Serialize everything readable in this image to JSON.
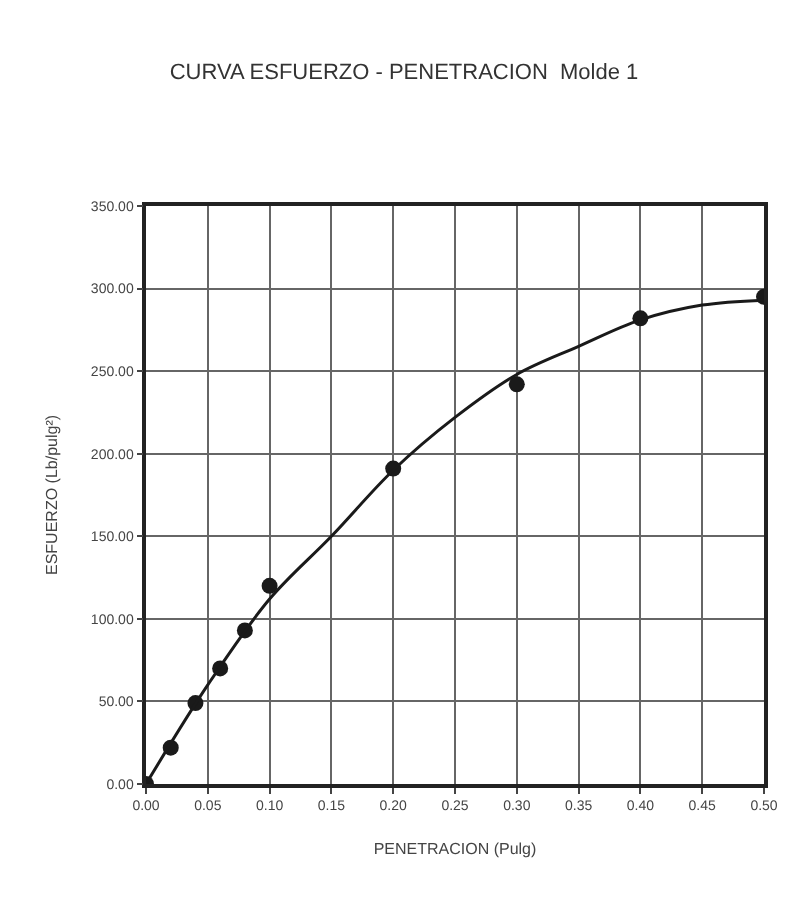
{
  "chart_data": {
    "type": "scatter",
    "title": "CURVA ESFUERZO - PENETRACION  Molde 1",
    "xlabel": "PENETRACION (Pulg)",
    "ylabel": "ESFUERZO (Lb/pulg²)",
    "xlim": [
      0,
      0.5
    ],
    "xticks": [
      {
        "value": 0,
        "label": "0.00"
      },
      {
        "value": 0.05,
        "label": "0.05"
      },
      {
        "value": 0.1,
        "label": "0.10"
      },
      {
        "value": 0.15,
        "label": "0.15"
      },
      {
        "value": 0.2,
        "label": "0.20"
      },
      {
        "value": 0.25,
        "label": "0.25"
      },
      {
        "value": 0.3,
        "label": "0.30"
      },
      {
        "value": 0.35,
        "label": "0.35"
      },
      {
        "value": 0.4,
        "label": "0.40"
      },
      {
        "value": 0.45,
        "label": "0.45"
      },
      {
        "value": 0.5,
        "label": "0.50"
      }
    ],
    "ylim": [
      0,
      350
    ],
    "yticks": [
      {
        "value": 0,
        "label": "0.00"
      },
      {
        "value": 50,
        "label": "50.00"
      },
      {
        "value": 100,
        "label": "100.00"
      },
      {
        "value": 150,
        "label": "150.00"
      },
      {
        "value": 200,
        "label": "200.00"
      },
      {
        "value": 250,
        "label": "250.00"
      },
      {
        "value": 300,
        "label": "300.00"
      },
      {
        "value": 350,
        "label": "350.00"
      }
    ],
    "grid": true,
    "marker": "circle",
    "series": [
      {
        "color": "#1a1a1a",
        "x": [
          0,
          0.02,
          0.04,
          0.06,
          0.08,
          0.1,
          0.2,
          0.3,
          0.4,
          0.5
        ],
        "values": [
          0,
          22,
          49,
          70,
          93,
          120,
          191,
          242,
          282,
          295
        ]
      },
      {
        "type": "line",
        "color": "#1a1a1a",
        "marker": "none",
        "x": [
          0,
          0.05,
          0.1,
          0.15,
          0.2,
          0.25,
          0.3,
          0.35,
          0.4,
          0.45,
          0.5
        ],
        "values": [
          0,
          60,
          112,
          150,
          190,
          222,
          248,
          265,
          281,
          290,
          293
        ]
      }
    ]
  }
}
